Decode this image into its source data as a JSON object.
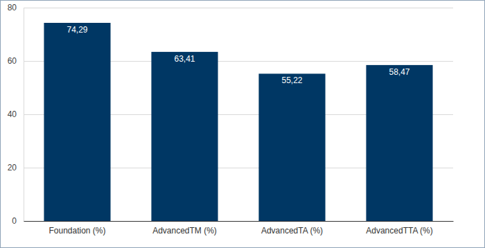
{
  "chart_data": {
    "type": "bar",
    "categories": [
      "Foundation (%)",
      "AdvancedTM (%)",
      "AdvancedTA (%)",
      "AdvancedTTA (%)"
    ],
    "values": [
      74.29,
      63.41,
      55.22,
      58.47
    ],
    "value_labels": [
      "74,29",
      "63,41",
      "55,22",
      "58,47"
    ],
    "color": "#003764",
    "ylim": [
      0,
      80
    ],
    "yticks": [
      0,
      20,
      40,
      60,
      80
    ],
    "grid": true,
    "data_labels": true
  }
}
